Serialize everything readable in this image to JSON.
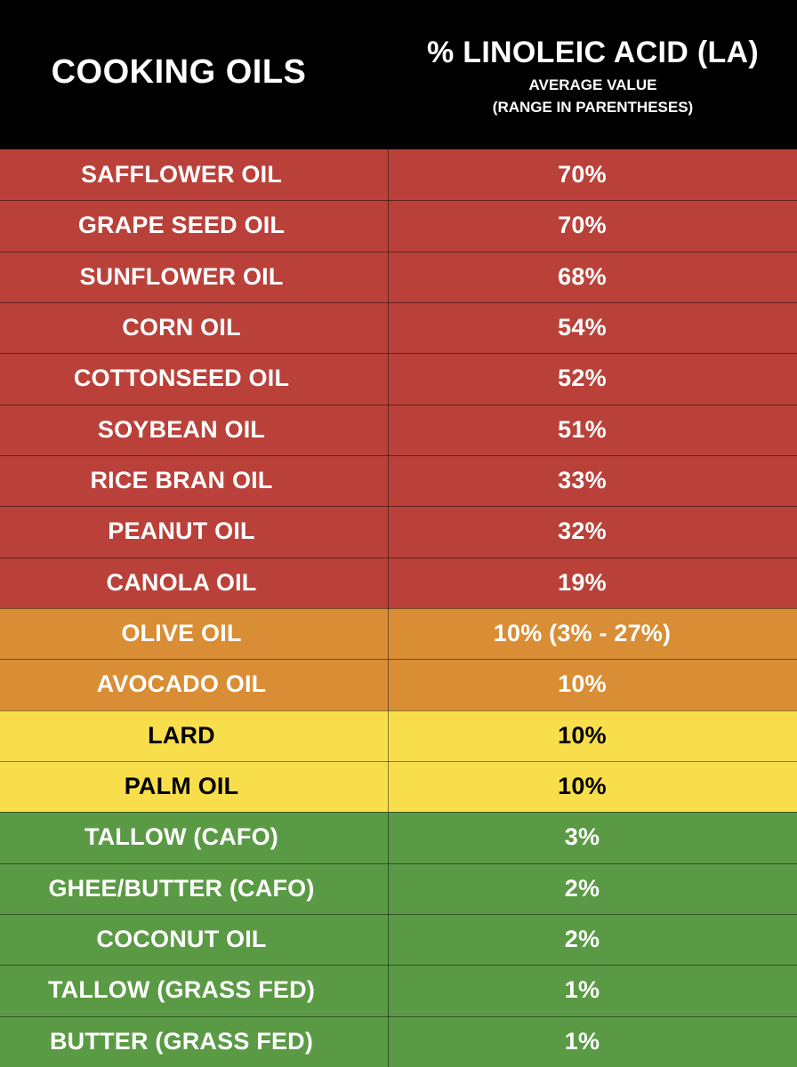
{
  "header": {
    "col1_title": "COOKING OILS",
    "col2_title": "% LINOLEIC ACID (LA)",
    "col2_sub1": "AVERAGE VALUE",
    "col2_sub2": "(RANGE IN PARENTHESES)"
  },
  "colors": {
    "header_bg": "#000000",
    "red": "#b9413a",
    "orange": "#d98d34",
    "yellow": "#f9de4c",
    "green": "#5b9a45",
    "text_light": "#ffffff",
    "text_dark": "#000000"
  },
  "chart_data": {
    "type": "table",
    "columns": [
      "COOKING OILS",
      "% LINOLEIC ACID (LA)"
    ],
    "rows": [
      {
        "oil": "SAFFLOWER OIL",
        "la": "70%",
        "value": 70,
        "tier": "red"
      },
      {
        "oil": "GRAPE SEED OIL",
        "la": "70%",
        "value": 70,
        "tier": "red"
      },
      {
        "oil": "SUNFLOWER OIL",
        "la": "68%",
        "value": 68,
        "tier": "red"
      },
      {
        "oil": "CORN OIL",
        "la": "54%",
        "value": 54,
        "tier": "red"
      },
      {
        "oil": "COTTONSEED OIL",
        "la": "52%",
        "value": 52,
        "tier": "red"
      },
      {
        "oil": "SOYBEAN OIL",
        "la": "51%",
        "value": 51,
        "tier": "red"
      },
      {
        "oil": "RICE BRAN OIL",
        "la": "33%",
        "value": 33,
        "tier": "red"
      },
      {
        "oil": "PEANUT OIL",
        "la": "32%",
        "value": 32,
        "tier": "red"
      },
      {
        "oil": "CANOLA OIL",
        "la": "19%",
        "value": 19,
        "tier": "red"
      },
      {
        "oil": "OLIVE OIL",
        "la": "10% (3% - 27%)",
        "value": 10,
        "range": [
          3,
          27
        ],
        "tier": "orange"
      },
      {
        "oil": "AVOCADO OIL",
        "la": "10%",
        "value": 10,
        "tier": "orange"
      },
      {
        "oil": "LARD",
        "la": "10%",
        "value": 10,
        "tier": "yellow"
      },
      {
        "oil": "PALM OIL",
        "la": "10%",
        "value": 10,
        "tier": "yellow"
      },
      {
        "oil": "TALLOW (CAFO)",
        "la": "3%",
        "value": 3,
        "tier": "green"
      },
      {
        "oil": "GHEE/BUTTER (CAFO)",
        "la": "2%",
        "value": 2,
        "tier": "green"
      },
      {
        "oil": "COCONUT OIL",
        "la": "2%",
        "value": 2,
        "tier": "green"
      },
      {
        "oil": "TALLOW (GRASS FED)",
        "la": "1%",
        "value": 1,
        "tier": "green"
      },
      {
        "oil": "BUTTER (GRASS FED)",
        "la": "1%",
        "value": 1,
        "tier": "green"
      }
    ]
  }
}
